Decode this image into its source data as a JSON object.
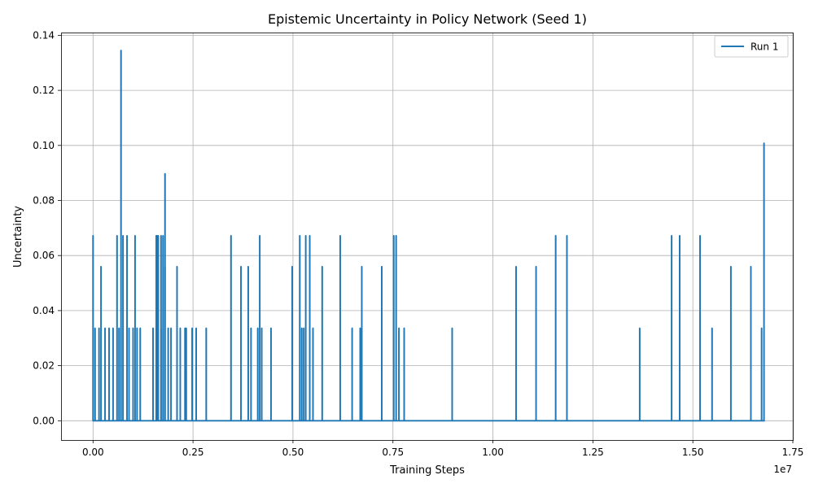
{
  "chart_data": {
    "type": "line",
    "title": "Epistemic Uncertainty in Policy Network (Seed 1)",
    "xlabel": "Training Steps",
    "ylabel": "Uncertainty",
    "x_offset_label": "1e7",
    "x_scale": 10000000,
    "xlim": [
      -0.08,
      1.75
    ],
    "ylim": [
      -0.007,
      0.141
    ],
    "xticks": [
      0.0,
      0.25,
      0.5,
      0.75,
      1.0,
      1.25,
      1.5,
      1.75
    ],
    "xtick_labels": [
      "0.00",
      "0.25",
      "0.50",
      "0.75",
      "1.00",
      "1.25",
      "1.50",
      "1.75"
    ],
    "yticks": [
      0.0,
      0.02,
      0.04,
      0.06,
      0.08,
      0.1,
      0.12,
      0.14
    ],
    "ytick_labels": [
      "0.00",
      "0.02",
      "0.04",
      "0.06",
      "0.08",
      "0.10",
      "0.12",
      "0.14"
    ],
    "grid": true,
    "legend_position": "upper right",
    "series": [
      {
        "name": "Run 1",
        "color": "#1f77b4",
        "x_end": 1.68,
        "spikes": [
          [
            0.0,
            0.0672
          ],
          [
            0.005,
            0.0336
          ],
          [
            0.015,
            0.0336
          ],
          [
            0.02,
            0.056
          ],
          [
            0.03,
            0.0336
          ],
          [
            0.04,
            0.0336
          ],
          [
            0.05,
            0.0336
          ],
          [
            0.06,
            0.0672
          ],
          [
            0.065,
            0.0336
          ],
          [
            0.07,
            0.1345
          ],
          [
            0.075,
            0.0672
          ],
          [
            0.085,
            0.0672
          ],
          [
            0.09,
            0.0336
          ],
          [
            0.1,
            0.0336
          ],
          [
            0.11,
            0.0336
          ],
          [
            0.15,
            0.0336
          ],
          [
            0.16,
            0.0672
          ],
          [
            0.17,
            0.0336
          ],
          [
            0.18,
            0.0897
          ],
          [
            0.195,
            0.0336
          ],
          [
            0.21,
            0.0336
          ],
          [
            0.23,
            0.0336
          ],
          [
            0.248,
            0.0336
          ],
          [
            0.258,
            0.0336
          ],
          [
            0.105,
            0.0672
          ],
          [
            0.118,
            0.0336
          ],
          [
            0.158,
            0.0672
          ],
          [
            0.163,
            0.0672
          ],
          [
            0.17,
            0.0672
          ],
          [
            0.175,
            0.0672
          ],
          [
            0.18,
            0.056
          ],
          [
            0.188,
            0.0336
          ],
          [
            0.21,
            0.056
          ],
          [
            0.218,
            0.0336
          ],
          [
            0.233,
            0.0336
          ],
          [
            0.248,
            0.0336
          ],
          [
            0.283,
            0.0336
          ],
          [
            0.345,
            0.0672
          ],
          [
            0.37,
            0.056
          ],
          [
            0.388,
            0.056
          ],
          [
            0.395,
            0.0336
          ],
          [
            0.412,
            0.0336
          ],
          [
            0.417,
            0.0672
          ],
          [
            0.422,
            0.0336
          ],
          [
            0.445,
            0.0336
          ],
          [
            0.498,
            0.056
          ],
          [
            0.517,
            0.0672
          ],
          [
            0.522,
            0.0336
          ],
          [
            0.527,
            0.0336
          ],
          [
            0.532,
            0.0672
          ],
          [
            0.542,
            0.0672
          ],
          [
            0.55,
            0.0336
          ],
          [
            0.573,
            0.056
          ],
          [
            0.618,
            0.0672
          ],
          [
            0.648,
            0.0336
          ],
          [
            0.668,
            0.0336
          ],
          [
            0.672,
            0.056
          ],
          [
            0.722,
            0.056
          ],
          [
            0.752,
            0.0672
          ],
          [
            0.758,
            0.0672
          ],
          [
            0.765,
            0.0336
          ],
          [
            0.778,
            0.0336
          ],
          [
            0.898,
            0.0336
          ],
          [
            1.058,
            0.056
          ],
          [
            1.108,
            0.056
          ],
          [
            1.157,
            0.0672
          ],
          [
            1.185,
            0.0672
          ],
          [
            1.367,
            0.0336
          ],
          [
            1.447,
            0.0672
          ],
          [
            1.467,
            0.0672
          ],
          [
            1.518,
            0.0672
          ],
          [
            1.548,
            0.0336
          ],
          [
            1.595,
            0.056
          ],
          [
            1.645,
            0.056
          ],
          [
            1.672,
            0.0336
          ],
          [
            1.678,
            0.1008
          ]
        ]
      }
    ]
  }
}
